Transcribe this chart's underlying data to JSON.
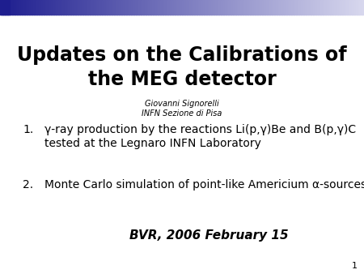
{
  "title_line1": "Updates on the Calibrations of",
  "title_line2": "the MEG detector",
  "author_line1": "Giovanni Signorelli",
  "author_line2": "INFN Sezione di Pisa",
  "item1_prefix": "1.",
  "item1_line1": "γ-ray production by the reactions Li(p,γ)Be and B(p,γ)C",
  "item1_line2": "tested at the Legnaro INFN Laboratory",
  "item2_prefix": "2.",
  "item2": "Monte Carlo simulation of point-like Americium α-sources",
  "footer": "BVR, 2006 February 15",
  "page_number": "1",
  "bg_color": "#ffffff",
  "text_color": "#000000",
  "title_color": "#000000",
  "header_dark": "#1e1e8f",
  "header_light": "#d8d8ee"
}
